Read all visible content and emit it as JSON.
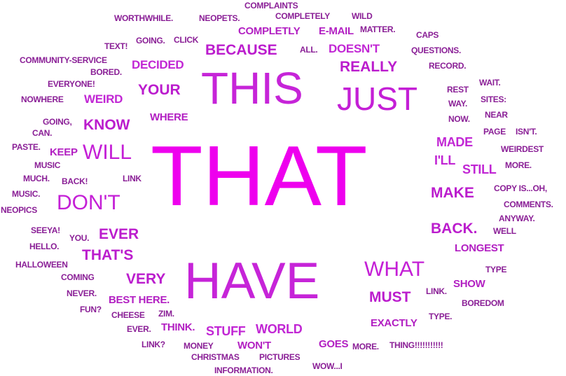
{
  "words": {
    "complaints": "COMPLAINTS",
    "worthwhile": "WORTHWHILE.",
    "neopets": "NEOPETS.",
    "completely": "COMPLETELY",
    "wild": "WILD",
    "completly": "COMPLETLY",
    "email": "E-MAIL",
    "matter": "MATTER.",
    "caps": "CAPS",
    "text": "TEXT!",
    "going_dot": "GOING.",
    "click": "CLICK",
    "because": "BECAUSE",
    "all": "ALL.",
    "doesnt": "DOESN'T",
    "questions": "QUESTIONS.",
    "community_service": "COMMUNITY-SERVICE",
    "decided": "DECIDED",
    "really": "REALLY",
    "record": "RECORD.",
    "bored": "BORED.",
    "this": "THIS",
    "everyone": "EVERYONE!",
    "your": "YOUR",
    "wait": "WAIT.",
    "rest": "REST",
    "just": "JUST",
    "nowhere": "NOWHERE",
    "weird": "WEIRD",
    "sites": "SITES:",
    "way": "WAY.",
    "near": "NEAR",
    "where": "WHERE",
    "now": "NOW.",
    "going_comma": "GOING,",
    "know": "KNOW",
    "can": "CAN.",
    "page": "PAGE",
    "isnt": "ISN'T.",
    "made": "MADE",
    "paste": "PASTE.",
    "keep": "KEEP",
    "will": "WILL",
    "weirdest": "WEIRDEST",
    "ill": "I'LL",
    "that": "THAT",
    "music_a": "MUSIC",
    "more_a": "MORE.",
    "still": "STILL",
    "much": "MUCH.",
    "back_ex": "BACK!",
    "link": "LINK",
    "make": "MAKE",
    "copy_is": "COPY IS...OH,",
    "music_b": "MUSIC.",
    "dont": "DON'T",
    "neopics": "NEOPICS",
    "comments": "COMMENTS.",
    "anyway": "ANYWAY.",
    "seeya": "SEEYA!",
    "ever_a": "EVER",
    "back_dot": "BACK.",
    "well": "WELL",
    "you": "YOU.",
    "hello": "HELLO.",
    "thats": "THAT'S",
    "longest": "LONGEST",
    "halloween": "HALLOWEEN",
    "what": "WHAT",
    "coming": "COMING",
    "type_a": "TYPE",
    "very": "VERY",
    "have": "HAVE",
    "show": "SHOW",
    "never": "NEVER.",
    "best_here": "BEST HERE.",
    "must": "MUST",
    "link_dot": "LINK.",
    "boredom": "BOREDOM",
    "fun": "FUN?",
    "cheese": "CHEESE",
    "zim": "ZIM.",
    "type_b": "TYPE.",
    "exactly": "EXACTLY",
    "ever_b": "EVER.",
    "think": "THINK.",
    "stuff": "STUFF",
    "world": "WORLD",
    "link_q": "LINK?",
    "money": "MONEY",
    "wont": "WON'T",
    "goes": "GOES",
    "more_b": "MORE.",
    "thing": "THING!!!!!!!!!!!",
    "christmas": "CHRISTMAS",
    "pictures": "PICTURES",
    "wow": "WOW...I",
    "information": "INFORMATION."
  },
  "colors": {
    "dominant": "#ee00ee",
    "large": "#c624d8",
    "medium": "#bb1ccd",
    "small": "#b21fc2",
    "tiny": "#8a1f96"
  }
}
